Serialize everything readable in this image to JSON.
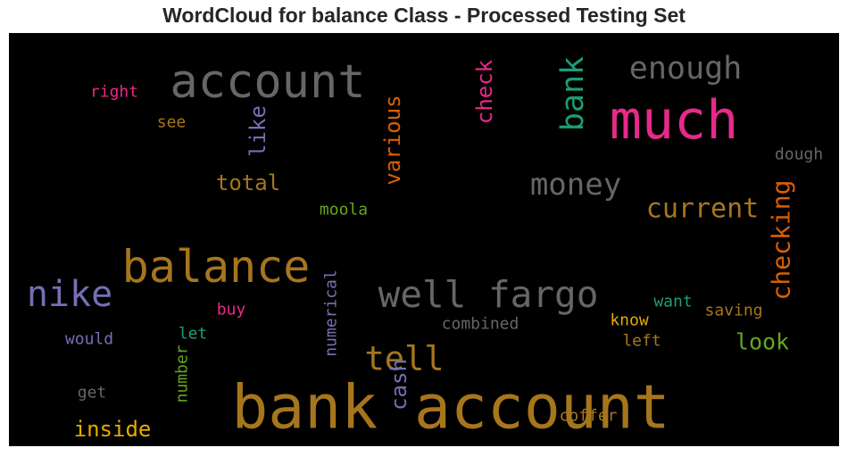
{
  "title": "WordCloud for balance Class - Processed Testing Set",
  "chart_data": {
    "type": "wordcloud",
    "background": "#000000",
    "words": [
      {
        "text": "bank account",
        "color": "#a6761d"
      },
      {
        "text": "account",
        "color": "#666666"
      },
      {
        "text": "much",
        "color": "#e7298a"
      },
      {
        "text": "balance",
        "color": "#a6761d"
      },
      {
        "text": "well fargo",
        "color": "#666666"
      },
      {
        "text": "nike",
        "color": "#7570b3"
      },
      {
        "text": "enough",
        "color": "#666666"
      },
      {
        "text": "bank",
        "color": "#1b9e77"
      },
      {
        "text": "money",
        "color": "#666666"
      },
      {
        "text": "current",
        "color": "#a6761d"
      },
      {
        "text": "checking",
        "color": "#d95f02"
      },
      {
        "text": "tell",
        "color": "#a6761d"
      },
      {
        "text": "check",
        "color": "#e7298a"
      },
      {
        "text": "various",
        "color": "#d95f02"
      },
      {
        "text": "like",
        "color": "#7570b3"
      },
      {
        "text": "total",
        "color": "#a6761d"
      },
      {
        "text": "cash",
        "color": "#7570b3"
      },
      {
        "text": "look",
        "color": "#66a61e"
      },
      {
        "text": "inside",
        "color": "#e6ab02"
      },
      {
        "text": "right",
        "color": "#e7298a"
      },
      {
        "text": "see",
        "color": "#a6761d"
      },
      {
        "text": "dough",
        "color": "#666666"
      },
      {
        "text": "moola",
        "color": "#66a61e"
      },
      {
        "text": "numerical",
        "color": "#7570b3"
      },
      {
        "text": "buy",
        "color": "#e7298a"
      },
      {
        "text": "want",
        "color": "#1b9e77"
      },
      {
        "text": "saving",
        "color": "#a6761d"
      },
      {
        "text": "combined",
        "color": "#666666"
      },
      {
        "text": "know",
        "color": "#e6ab02"
      },
      {
        "text": "left",
        "color": "#a6761d"
      },
      {
        "text": "let",
        "color": "#1b9e77"
      },
      {
        "text": "would",
        "color": "#7570b3"
      },
      {
        "text": "number",
        "color": "#66a61e"
      },
      {
        "text": "get",
        "color": "#666666"
      },
      {
        "text": "coffer",
        "color": "#a6761d"
      }
    ]
  }
}
